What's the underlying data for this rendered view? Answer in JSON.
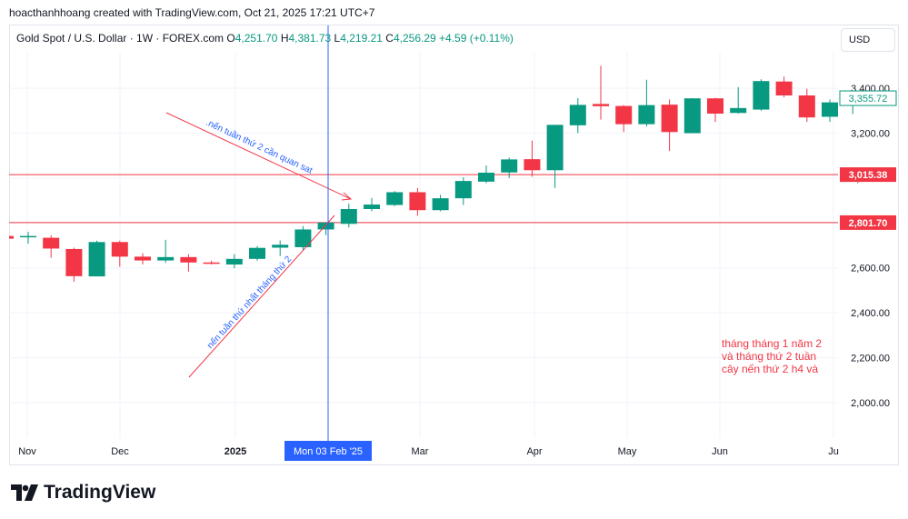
{
  "attribution": "hoacthanhhoang created with TradingView.com, Oct 21, 2025 17:21 UTC+7",
  "legend": {
    "symbol": "Gold Spot / U.S. Dollar · 1W · FOREX.com",
    "open_label": "O",
    "open": "4,251.70",
    "high_label": "H",
    "high": "4,381.73",
    "low_label": "L",
    "low": "4,219.21",
    "close_label": "C",
    "close": "4,256.29",
    "change": "+4.59 (+0.11%)"
  },
  "currency_button": "USD",
  "brand": "TradingView",
  "crosshair_label": "Mon 03 Feb '25",
  "annotations": {
    "arrow1_text": ".nến tuần thứ 2 cần quan sat",
    "arrow2_text": "nến tuần thứ nhất tháng thứ 2",
    "note_lines": [
      "tháng tháng 1 năm 2",
      "và tháng thứ 2 tuần",
      "cây nến thứ 2 h4 và"
    ]
  },
  "colors": {
    "up": "#089981",
    "down": "#f23645",
    "level": "#f23645",
    "crosshair": "#2962ff",
    "note": "#f23645",
    "annotation_text": "#2962ff"
  },
  "chart_data": {
    "type": "candlestick",
    "timeframe": "1W",
    "y_axis_ticks": [
      2000,
      2200,
      2400,
      2600,
      2800,
      3000,
      3200,
      3400
    ],
    "y_axis_tick_labels": [
      "2,000.00",
      "2,200.00",
      "2,400.00",
      "2,600.00",
      "2,800.00",
      "3,000.00",
      "3,200.00",
      "3,400.00"
    ],
    "x_axis_labels": [
      "Nov",
      "Dec",
      "2025",
      "Mar",
      "Apr",
      "May",
      "Jun",
      "Ju"
    ],
    "ylim": [
      1850,
      3590
    ],
    "horizontal_levels": [
      {
        "value": 3015.38,
        "label": "3,015.38"
      },
      {
        "value": 2801.7,
        "label": "2,801.70"
      }
    ],
    "last_price": {
      "value": 3355.72,
      "label": "3,355.72"
    },
    "candles": [
      {
        "o": 2736,
        "h": 2760,
        "l": 2708,
        "c": 2742
      },
      {
        "o": 2734,
        "h": 2745,
        "l": 2645,
        "c": 2686
      },
      {
        "o": 2684,
        "h": 2690,
        "l": 2538,
        "c": 2563
      },
      {
        "o": 2562,
        "h": 2721,
        "l": 2562,
        "c": 2715
      },
      {
        "o": 2715,
        "h": 2721,
        "l": 2605,
        "c": 2650
      },
      {
        "o": 2650,
        "h": 2665,
        "l": 2615,
        "c": 2633
      },
      {
        "o": 2633,
        "h": 2725,
        "l": 2622,
        "c": 2648
      },
      {
        "o": 2648,
        "h": 2661,
        "l": 2584,
        "c": 2624
      },
      {
        "o": 2624,
        "h": 2632,
        "l": 2615,
        "c": 2621
      },
      {
        "o": 2615,
        "h": 2661,
        "l": 2598,
        "c": 2640
      },
      {
        "o": 2640,
        "h": 2697,
        "l": 2632,
        "c": 2689
      },
      {
        "o": 2690,
        "h": 2722,
        "l": 2653,
        "c": 2703
      },
      {
        "o": 2692,
        "h": 2786,
        "l": 2680,
        "c": 2771
      },
      {
        "o": 2771,
        "h": 2804,
        "l": 2746,
        "c": 2802
      },
      {
        "o": 2796,
        "h": 2886,
        "l": 2780,
        "c": 2862
      },
      {
        "o": 2862,
        "h": 2911,
        "l": 2852,
        "c": 2882
      },
      {
        "o": 2880,
        "h": 2942,
        "l": 2875,
        "c": 2937
      },
      {
        "o": 2937,
        "h": 2956,
        "l": 2832,
        "c": 2857
      },
      {
        "o": 2857,
        "h": 2925,
        "l": 2852,
        "c": 2910
      },
      {
        "o": 2910,
        "h": 3003,
        "l": 2880,
        "c": 2987
      },
      {
        "o": 2984,
        "h": 3056,
        "l": 2978,
        "c": 3024
      },
      {
        "o": 3025,
        "h": 3091,
        "l": 3000,
        "c": 3083
      },
      {
        "o": 3084,
        "h": 3167,
        "l": 3006,
        "c": 3035
      },
      {
        "o": 3035,
        "h": 3237,
        "l": 2956,
        "c": 3237
      },
      {
        "o": 3235,
        "h": 3356,
        "l": 3200,
        "c": 3326
      },
      {
        "o": 3330,
        "h": 3500,
        "l": 3260,
        "c": 3320
      },
      {
        "o": 3321,
        "h": 3325,
        "l": 3205,
        "c": 3240
      },
      {
        "o": 3240,
        "h": 3438,
        "l": 3230,
        "c": 3325
      },
      {
        "o": 3327,
        "h": 3350,
        "l": 3120,
        "c": 3205
      },
      {
        "o": 3200,
        "h": 3356,
        "l": 3200,
        "c": 3355
      },
      {
        "o": 3355,
        "h": 3358,
        "l": 3250,
        "c": 3287
      },
      {
        "o": 3290,
        "h": 3405,
        "l": 3287,
        "c": 3312
      },
      {
        "o": 3305,
        "h": 3440,
        "l": 3300,
        "c": 3432
      },
      {
        "o": 3430,
        "h": 3452,
        "l": 3360,
        "c": 3368
      },
      {
        "o": 3368,
        "h": 3398,
        "l": 3250,
        "c": 3270
      },
      {
        "o": 3273,
        "h": 3350,
        "l": 3250,
        "c": 3337
      },
      {
        "o": 3337,
        "h": 3362,
        "l": 3285,
        "c": 3355.72
      }
    ]
  }
}
